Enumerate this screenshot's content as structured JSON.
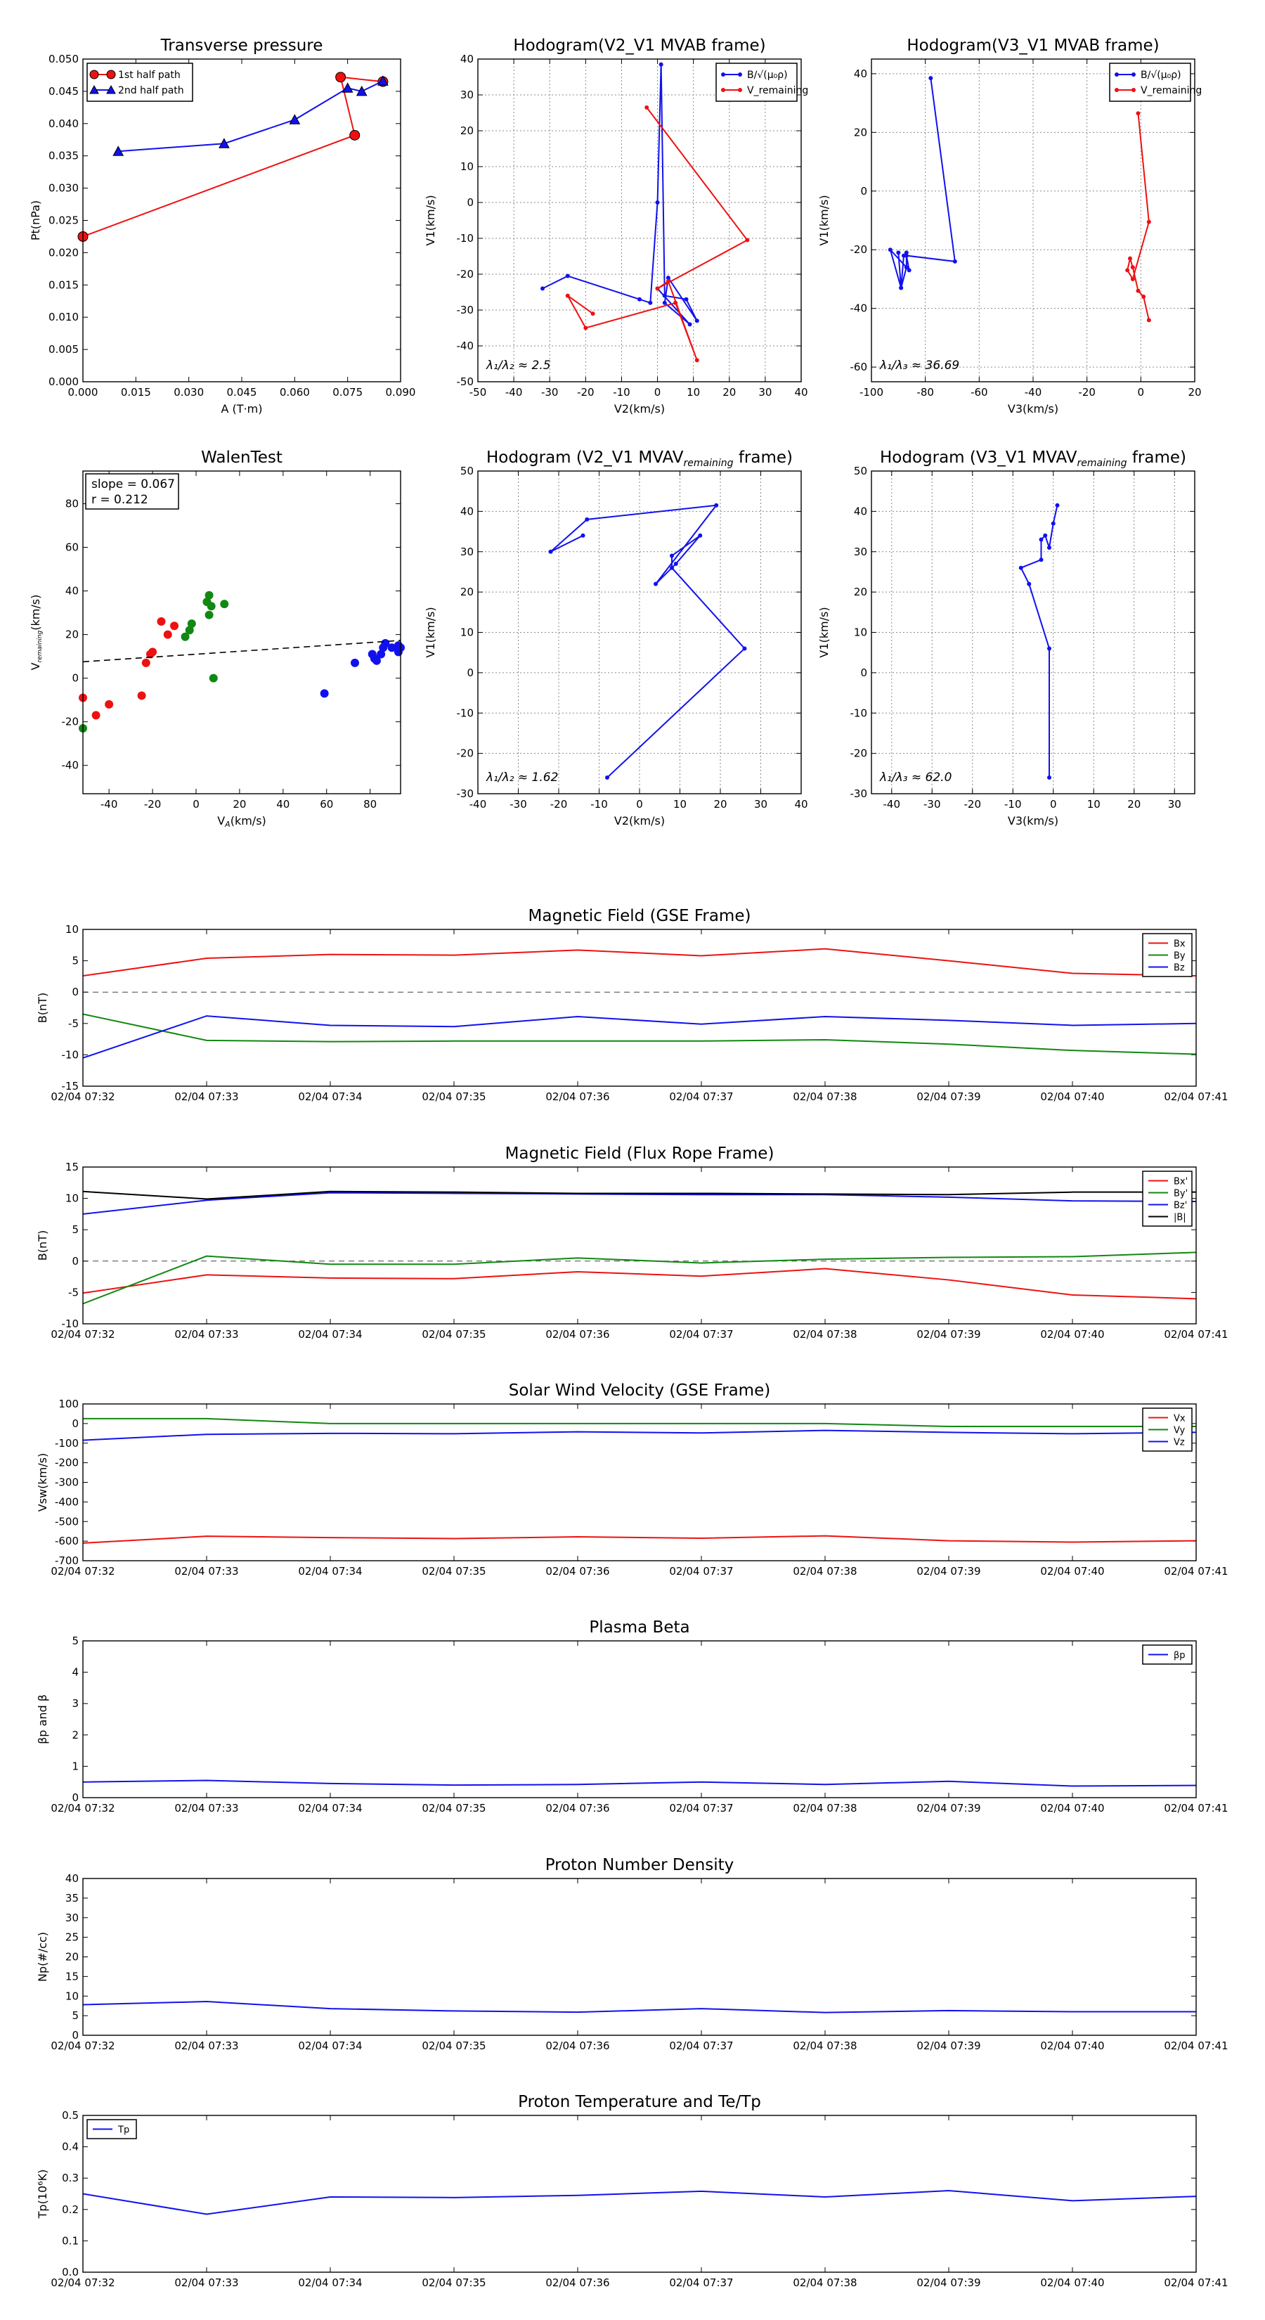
{
  "colors": {
    "red": "#ee1111",
    "green": "#118811",
    "blue": "#1111ee",
    "black": "#000000",
    "grid": "#8a8a8a"
  },
  "times": [
    "02/04 07:32",
    "02/04 07:33",
    "02/04 07:34",
    "02/04 07:35",
    "02/04 07:36",
    "02/04 07:37",
    "02/04 07:38",
    "02/04 07:39",
    "02/04 07:40",
    "02/04 07:41"
  ],
  "chart_data": [
    {
      "id": "transverse-pressure",
      "type": "line",
      "title": "Transverse pressure",
      "xlabel": "A (T·m)",
      "ylabel": "Pt(nPa)",
      "xlim": [
        0,
        0.09
      ],
      "ylim": [
        0,
        0.05
      ],
      "xticks": [
        0,
        0.015,
        0.03,
        0.045,
        0.06,
        0.075,
        0.09
      ],
      "xticklabels": [
        "0.000",
        "0.015",
        "0.030",
        "0.045",
        "0.060",
        "0.075",
        "0.090"
      ],
      "yticks": [
        0,
        0.005,
        0.01,
        0.015,
        0.02,
        0.025,
        0.03,
        0.035,
        0.04,
        0.045,
        0.05
      ],
      "yticklabels": [
        "0.000",
        "0.005",
        "0.010",
        "0.015",
        "0.020",
        "0.025",
        "0.030",
        "0.035",
        "0.040",
        "0.045",
        "0.050"
      ],
      "grid": false,
      "legend": "top-left",
      "series": [
        {
          "name": "1st half path",
          "color": "red",
          "marker": "circle",
          "x": [
            0.0,
            0.077,
            0.073,
            0.085
          ],
          "y": [
            0.0225,
            0.0382,
            0.0472,
            0.0465
          ]
        },
        {
          "name": "2nd half path",
          "color": "blue",
          "marker": "triangle",
          "x": [
            0.01,
            0.04,
            0.06,
            0.075,
            0.079,
            0.085
          ],
          "y": [
            0.0357,
            0.0369,
            0.0406,
            0.0455,
            0.045,
            0.0466
          ]
        }
      ]
    },
    {
      "id": "hodogram-v2-v1-mvab",
      "type": "line",
      "title": "Hodogram(V2_V1 MVAB frame)",
      "xlabel": "V2(km/s)",
      "ylabel": "V1(km/s)",
      "xlim": [
        -50,
        40
      ],
      "ylim": [
        -50,
        40
      ],
      "xticks": [
        -50,
        -40,
        -30,
        -20,
        -10,
        0,
        10,
        20,
        30,
        40
      ],
      "yticks": [
        -50,
        -40,
        -30,
        -20,
        -10,
        0,
        10,
        20,
        30,
        40
      ],
      "grid": true,
      "legend": "top-right",
      "annotation": "λ₁/λ₂ ≈ 2.5",
      "series": [
        {
          "name": "B/√(μ₀ρ)",
          "color": "blue",
          "marker": "dot",
          "x": [
            -32,
            -25,
            -5,
            -2,
            0,
            1,
            2,
            8,
            11,
            3,
            2,
            9,
            0
          ],
          "y": [
            -24,
            -20.5,
            -27,
            -28,
            0,
            38.5,
            -26,
            -27,
            -33,
            -21,
            -28,
            -34,
            -24
          ]
        },
        {
          "name": "V_remaining",
          "color": "red",
          "marker": "dot",
          "x": [
            -18,
            -25,
            -20,
            5,
            11,
            3,
            0,
            25,
            -3
          ],
          "y": [
            -31,
            -26,
            -35,
            -28,
            -44,
            -22,
            -24,
            -10.5,
            26.5
          ]
        }
      ]
    },
    {
      "id": "hodogram-v3-v1-mvab",
      "type": "line",
      "title": "Hodogram(V3_V1 MVAB frame)",
      "xlabel": "V3(km/s)",
      "ylabel": "V1(km/s)",
      "xlim": [
        -100,
        20
      ],
      "ylim": [
        -65,
        45
      ],
      "xticks": [
        -100,
        -80,
        -60,
        -40,
        -20,
        0,
        20
      ],
      "yticks": [
        -60,
        -40,
        -20,
        0,
        20,
        40
      ],
      "grid": true,
      "legend": "top-right",
      "annotation": "λ₁/λ₃ ≈ 36.69",
      "series": [
        {
          "name": "B/√(μ₀ρ)",
          "color": "blue",
          "marker": "dot",
          "x": [
            -78,
            -69,
            -87,
            -86,
            -93,
            -89,
            -88,
            -87,
            -87,
            -89,
            -90
          ],
          "y": [
            38.5,
            -24,
            -22,
            -27,
            -20,
            -33,
            -22,
            -21,
            -26,
            -33,
            -21
          ]
        },
        {
          "name": "V_remaining",
          "color": "red",
          "marker": "dot",
          "x": [
            -1,
            3,
            -3,
            -5,
            -4,
            -3,
            -1,
            1,
            3
          ],
          "y": [
            26.5,
            -10.5,
            -30,
            -27,
            -23,
            -26,
            -34,
            -36,
            -44
          ]
        }
      ]
    },
    {
      "id": "walen-test",
      "type": "scatter",
      "title": "WalenTest",
      "xlabel": "V_A(km/s)",
      "ylabel": "V_remaining(km/s)",
      "xlim": [
        -52,
        94
      ],
      "ylim": [
        -53,
        95
      ],
      "xticks": [
        -40,
        -20,
        0,
        20,
        40,
        60,
        80
      ],
      "yticks": [
        -40,
        -20,
        0,
        20,
        40,
        60,
        80
      ],
      "grid": false,
      "annotation_lines": [
        "slope = 0.067",
        "r = 0.212"
      ],
      "fit_line": {
        "slope": 0.067,
        "intercept": 11,
        "style": "dashed"
      },
      "series": [
        {
          "name": "red",
          "color": "red",
          "x": [
            -52,
            -46,
            -40,
            -25,
            -23,
            -21,
            -20,
            -16,
            -13,
            -10
          ],
          "y": [
            -9,
            -17,
            -12,
            -8,
            7,
            11,
            12,
            26,
            20,
            24
          ]
        },
        {
          "name": "green",
          "color": "green",
          "x": [
            -52,
            -5,
            -3,
            -2,
            5,
            6,
            6,
            7,
            8,
            13
          ],
          "y": [
            -23,
            19,
            22,
            25,
            35,
            38,
            29,
            33,
            0,
            34
          ]
        },
        {
          "name": "blue",
          "color": "blue",
          "x": [
            59,
            73,
            81,
            82,
            83,
            85,
            86,
            87,
            90,
            93,
            93,
            94
          ],
          "y": [
            -7,
            7,
            11,
            9,
            8,
            11,
            14,
            16,
            14,
            12,
            15,
            14
          ]
        }
      ]
    },
    {
      "id": "hodogram-v2-v1-mvav",
      "type": "line",
      "title": "Hodogram (V2_V1 MVAV_remaining frame)",
      "xlabel": "V2(km/s)",
      "ylabel": "V1(km/s)",
      "xlim": [
        -40,
        40
      ],
      "ylim": [
        -30,
        50
      ],
      "xticks": [
        -40,
        -30,
        -20,
        -10,
        0,
        10,
        20,
        30,
        40
      ],
      "yticks": [
        -30,
        -20,
        -10,
        0,
        10,
        20,
        30,
        40,
        50
      ],
      "grid": true,
      "annotation": "λ₁/λ₂ ≈ 1.62",
      "series": [
        {
          "name": "",
          "color": "blue",
          "marker": "dot",
          "x": [
            -8,
            26,
            8,
            8,
            15,
            9,
            4,
            19,
            -13,
            -22,
            -14
          ],
          "y": [
            -26,
            6,
            26,
            29,
            34,
            27,
            22,
            41.5,
            38,
            30,
            34
          ]
        }
      ]
    },
    {
      "id": "hodogram-v3-v1-mvav",
      "type": "line",
      "title": "Hodogram (V3_V1 MVAV_remaining frame)",
      "xlabel": "V3(km/s)",
      "ylabel": "V1(km/s)",
      "xlim": [
        -45,
        35
      ],
      "ylim": [
        -30,
        50
      ],
      "xticks": [
        -40,
        -30,
        -20,
        -10,
        0,
        10,
        20,
        30
      ],
      "yticks": [
        -30,
        -20,
        -10,
        0,
        10,
        20,
        30,
        40,
        50
      ],
      "grid": true,
      "annotation": "λ₁/λ₃ ≈ 62.0",
      "series": [
        {
          "name": "",
          "color": "blue",
          "marker": "dot",
          "x": [
            -1,
            -1,
            -6,
            -8,
            -3,
            -3,
            -2,
            -1,
            0,
            1
          ],
          "y": [
            -26,
            6,
            22,
            26,
            28,
            33,
            34,
            31,
            37,
            41.5
          ]
        }
      ]
    },
    {
      "id": "magnetic-field-gse",
      "type": "line",
      "title": "Magnetic Field (GSE Frame)",
      "ylabel": "B(nT)",
      "ylim": [
        -15,
        10
      ],
      "yticks": [
        -15,
        -10,
        -5,
        0,
        5,
        10
      ],
      "zero_line": true,
      "legend": "top-right",
      "series": [
        {
          "name": "Bx",
          "color": "red",
          "values": [
            2.6,
            5.4,
            6.0,
            5.9,
            6.7,
            5.8,
            6.9,
            5.0,
            3.0,
            2.6
          ]
        },
        {
          "name": "By",
          "color": "green",
          "values": [
            -3.5,
            -7.7,
            -7.9,
            -7.8,
            -7.8,
            -7.8,
            -7.6,
            -8.3,
            -9.3,
            -9.9
          ]
        },
        {
          "name": "Bz",
          "color": "blue",
          "values": [
            -10.5,
            -3.8,
            -5.3,
            -5.5,
            -3.9,
            -5.1,
            -3.9,
            -4.5,
            -5.3,
            -5.0
          ]
        }
      ]
    },
    {
      "id": "magnetic-field-flux-rope",
      "type": "line",
      "title": "Magnetic Field (Flux Rope Frame)",
      "ylabel": "B(nT)",
      "ylim": [
        -10,
        15
      ],
      "yticks": [
        -10,
        -5,
        0,
        5,
        10,
        15
      ],
      "zero_line": true,
      "legend": "top-right",
      "series": [
        {
          "name": "Bx'",
          "color": "red",
          "values": [
            -5.1,
            -2.2,
            -2.7,
            -2.8,
            -1.7,
            -2.4,
            -1.2,
            -3.0,
            -5.4,
            -6.0
          ]
        },
        {
          "name": "By'",
          "color": "green",
          "values": [
            -6.8,
            0.8,
            -0.5,
            -0.5,
            0.5,
            -0.3,
            0.3,
            0.6,
            0.7,
            1.4
          ]
        },
        {
          "name": "Bz'",
          "color": "blue",
          "values": [
            7.5,
            9.7,
            10.9,
            10.8,
            10.7,
            10.6,
            10.6,
            10.2,
            9.6,
            9.5
          ]
        },
        {
          "name": "|B|",
          "color": "black",
          "values": [
            11.1,
            9.9,
            11.1,
            11.0,
            10.8,
            10.8,
            10.7,
            10.6,
            11.0,
            11.0
          ]
        }
      ]
    },
    {
      "id": "solar-wind-velocity",
      "type": "line",
      "title": "Solar Wind Velocity (GSE Frame)",
      "ylabel": "Vsw(km/s)",
      "ylim": [
        -700,
        100
      ],
      "yticks": [
        -700,
        -600,
        -500,
        -400,
        -300,
        -200,
        -100,
        0,
        100
      ],
      "legend": "top-right",
      "series": [
        {
          "name": "Vx",
          "color": "red",
          "values": [
            -610,
            -575,
            -582,
            -587,
            -578,
            -585,
            -573,
            -598,
            -605,
            -598
          ]
        },
        {
          "name": "Vy",
          "color": "green",
          "values": [
            25,
            25,
            0,
            0,
            0,
            0,
            0,
            -15,
            -15,
            -15
          ]
        },
        {
          "name": "Vz",
          "color": "blue",
          "values": [
            -85,
            -55,
            -50,
            -52,
            -42,
            -48,
            -35,
            -45,
            -52,
            -45
          ]
        }
      ]
    },
    {
      "id": "plasma-beta",
      "type": "line",
      "title": "Plasma Beta",
      "ylabel": "βp and β",
      "ylim": [
        0,
        5
      ],
      "yticks": [
        0,
        1,
        2,
        3,
        4,
        5
      ],
      "legend": "top-right",
      "series": [
        {
          "name": "βp",
          "color": "blue",
          "values": [
            0.5,
            0.55,
            0.45,
            0.4,
            0.42,
            0.5,
            0.42,
            0.52,
            0.37,
            0.39
          ]
        }
      ]
    },
    {
      "id": "proton-number-density",
      "type": "line",
      "title": "Proton Number Density",
      "ylabel": "Np(#/cc)",
      "ylim": [
        0,
        40
      ],
      "yticks": [
        0,
        5,
        10,
        15,
        20,
        25,
        30,
        35,
        40
      ],
      "series": [
        {
          "name": "",
          "color": "blue",
          "values": [
            7.8,
            8.6,
            6.8,
            6.2,
            5.9,
            6.8,
            5.8,
            6.3,
            6.0,
            6.0
          ]
        }
      ]
    },
    {
      "id": "proton-temperature",
      "type": "line",
      "title": "Proton Temperature and Te/Tp",
      "ylabel": "Tp(10⁶K)",
      "ylim": [
        0,
        0.5
      ],
      "yticks": [
        0,
        0.1,
        0.2,
        0.3,
        0.4,
        0.5
      ],
      "yticklabels": [
        "0.0",
        "0.1",
        "0.2",
        "0.3",
        "0.4",
        "0.5"
      ],
      "legend": "top-left",
      "series": [
        {
          "name": "Tp",
          "color": "blue",
          "values": [
            0.25,
            0.185,
            0.24,
            0.238,
            0.245,
            0.258,
            0.24,
            0.26,
            0.228,
            0.242
          ]
        }
      ]
    }
  ]
}
